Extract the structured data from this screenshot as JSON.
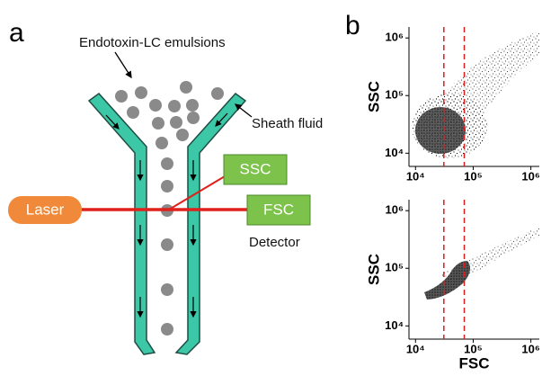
{
  "panel_a": {
    "label": "a",
    "emulsions": "Endotoxin-LC emulsions",
    "sheath": "Sheath fluid",
    "laser": "Laser",
    "ssc": "SSC",
    "fsc": "FSC",
    "detector": "Detector"
  },
  "panel_b": {
    "label": "b",
    "chart_data": [
      {
        "type": "scatter",
        "ylabel": "SSC",
        "log_scale": true,
        "xlim": [
          7700,
          1400000
        ],
        "ylim": [
          5900,
          1550000
        ],
        "xticks": [
          {
            "value": 10000,
            "label": "10⁴"
          },
          {
            "value": 100000,
            "label": "10⁵"
          },
          {
            "value": 1000000,
            "label": "10⁶"
          }
        ],
        "yticks": [
          {
            "value": 10000,
            "label": "10⁴"
          },
          {
            "value": 100000,
            "label": "10⁵"
          },
          {
            "value": 1000000,
            "label": "10⁶"
          }
        ],
        "gates": [
          31000,
          70000
        ],
        "gate_color": "#d62020"
      },
      {
        "type": "scatter",
        "xlabel": "FSC",
        "ylabel": "SSC",
        "log_scale": true,
        "xlim": [
          7700,
          1400000
        ],
        "ylim": [
          5900,
          1550000
        ],
        "xticks": [
          {
            "value": 10000,
            "label": "10⁴"
          },
          {
            "value": 100000,
            "label": "10⁵"
          },
          {
            "value": 1000000,
            "label": "10⁶"
          }
        ],
        "yticks": [
          {
            "value": 10000,
            "label": "10⁴"
          },
          {
            "value": 100000,
            "label": "10⁵"
          },
          {
            "value": 1000000,
            "label": "10⁶"
          }
        ],
        "gates": [
          31000,
          70000
        ],
        "gate_color": "#d62020"
      }
    ]
  }
}
